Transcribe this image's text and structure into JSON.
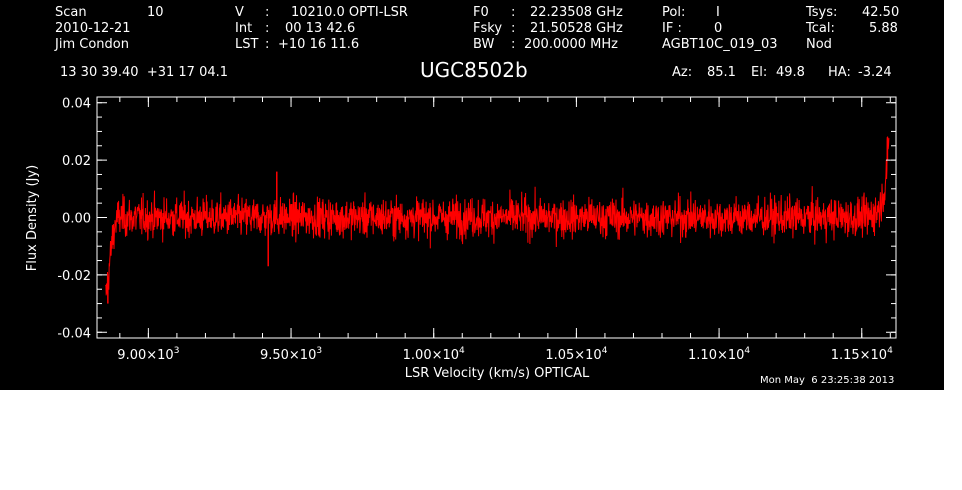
{
  "header": {
    "scan_label": "Scan",
    "scan_value": "10",
    "date": "2010-12-21",
    "observer": "Jim Condon",
    "v_label": "V",
    "v_sep": ":",
    "v_value": "10210.0 OPTI-LSR",
    "int_label": "Int",
    "int_sep": ":",
    "int_value": "00 13 42.6",
    "lst_label": "LST",
    "lst_sep": ":",
    "lst_value": "+10 16 11.6",
    "f0_label": "F0",
    "f0_sep": ":",
    "f0_value": "22.23508 GHz",
    "fsky_label": "Fsky",
    "fsky_sep": ":",
    "fsky_value": "21.50528 GHz",
    "bw_label": "BW",
    "bw_sep": ":",
    "bw_value": "200.0000 MHz",
    "pol_label": "Pol:",
    "pol_value": "I",
    "if_label": "IF :",
    "if_value": "0",
    "project": "AGBT10C_019_03",
    "tsys_label": "Tsys:",
    "tsys_value": "42.50",
    "tcal_label": "Tcal:",
    "tcal_value": "5.88",
    "mode": "Nod",
    "coords": "13 30 39.40  +31 17 04.1",
    "source": "UGC8502b",
    "az_label": "Az:",
    "az_value": "85.1",
    "el_label": "El:",
    "el_value": "49.8",
    "ha_label": "HA:",
    "ha_value": "-3.24",
    "timestamp": "Mon May  6 23:25:38 2013"
  },
  "colors": {
    "background": "#000000",
    "axes": "#ffffff",
    "series": "#ff0000"
  },
  "chart_data": {
    "type": "line",
    "title": "UGC8502b",
    "xlabel": "LSR Velocity (km/s) OPTICAL",
    "ylabel": "Flux Density (Jy)",
    "xlim": [
      8820,
      11620
    ],
    "ylim": [
      -0.042,
      0.042
    ],
    "x_ticks": [
      9000,
      9500,
      10000,
      10500,
      11000,
      11500
    ],
    "x_tick_labels": [
      {
        "mantissa": "9.00",
        "times": "×",
        "base": "10",
        "exp": "3"
      },
      {
        "mantissa": "9.50",
        "times": "×",
        "base": "10",
        "exp": "3"
      },
      {
        "mantissa": "1.00",
        "times": "×",
        "base": "10",
        "exp": "4"
      },
      {
        "mantissa": "1.05",
        "times": "×",
        "base": "10",
        "exp": "4"
      },
      {
        "mantissa": "1.10",
        "times": "×",
        "base": "10",
        "exp": "4"
      },
      {
        "mantissa": "1.15",
        "times": "×",
        "base": "10",
        "exp": "4"
      }
    ],
    "y_ticks": [
      0.04,
      0.02,
      0.0,
      -0.02,
      -0.04
    ],
    "y_tick_labels": [
      "0.04",
      "0.02",
      "0.00",
      "-0.02",
      "-0.04"
    ],
    "grid": false,
    "series": [
      {
        "x": [
          8850,
          8855,
          8860,
          8865,
          8870,
          8875,
          8880,
          8885,
          8890,
          8895,
          8900,
          8950,
          9000,
          9050,
          9100,
          9150,
          9200,
          9250,
          9300,
          9350,
          9400,
          9450,
          9500,
          9550,
          9600,
          9650,
          9700,
          9750,
          9800,
          9850,
          9900,
          9950,
          10000,
          10050,
          10100,
          10150,
          10200,
          10250,
          10300,
          10350,
          10400,
          10450,
          10500,
          10550,
          10600,
          10650,
          10700,
          10750,
          10800,
          10850,
          10900,
          10950,
          11000,
          11050,
          11100,
          11150,
          11200,
          11250,
          11300,
          11350,
          11400,
          11450,
          11500,
          11520,
          11540,
          11560,
          11570,
          11580,
          11585,
          11590,
          11595
        ],
        "values": [
          -0.028,
          -0.024,
          -0.02,
          -0.015,
          -0.011,
          -0.007,
          -0.004,
          -0.002,
          -0.001,
          0.0,
          0.0,
          0.0,
          0.0,
          0.0,
          0.0,
          0.0,
          0.0,
          0.0,
          0.0,
          0.0,
          0.0,
          0.0,
          0.0,
          0.0,
          0.0,
          0.0,
          0.0,
          0.0,
          0.0,
          0.0,
          0.0,
          0.0,
          0.0,
          0.0,
          0.0,
          0.0,
          0.0,
          0.0,
          0.0,
          0.0,
          0.0,
          0.0,
          0.0,
          0.0,
          0.0,
          0.0,
          0.0,
          0.0,
          0.0,
          0.0,
          0.0,
          0.0,
          0.0,
          0.0,
          0.0,
          0.0,
          0.0,
          0.0,
          0.0,
          0.0,
          0.0,
          0.0,
          0.0,
          0.0,
          0.001,
          0.003,
          0.006,
          0.01,
          0.015,
          0.02,
          0.026
        ],
        "noise_rms": 0.004,
        "peaks": [
          {
            "x": 8858,
            "y": -0.03
          },
          {
            "x": 9450,
            "y": 0.016
          },
          {
            "x": 9420,
            "y": -0.017
          },
          {
            "x": 11590,
            "y": 0.028
          }
        ]
      }
    ]
  }
}
